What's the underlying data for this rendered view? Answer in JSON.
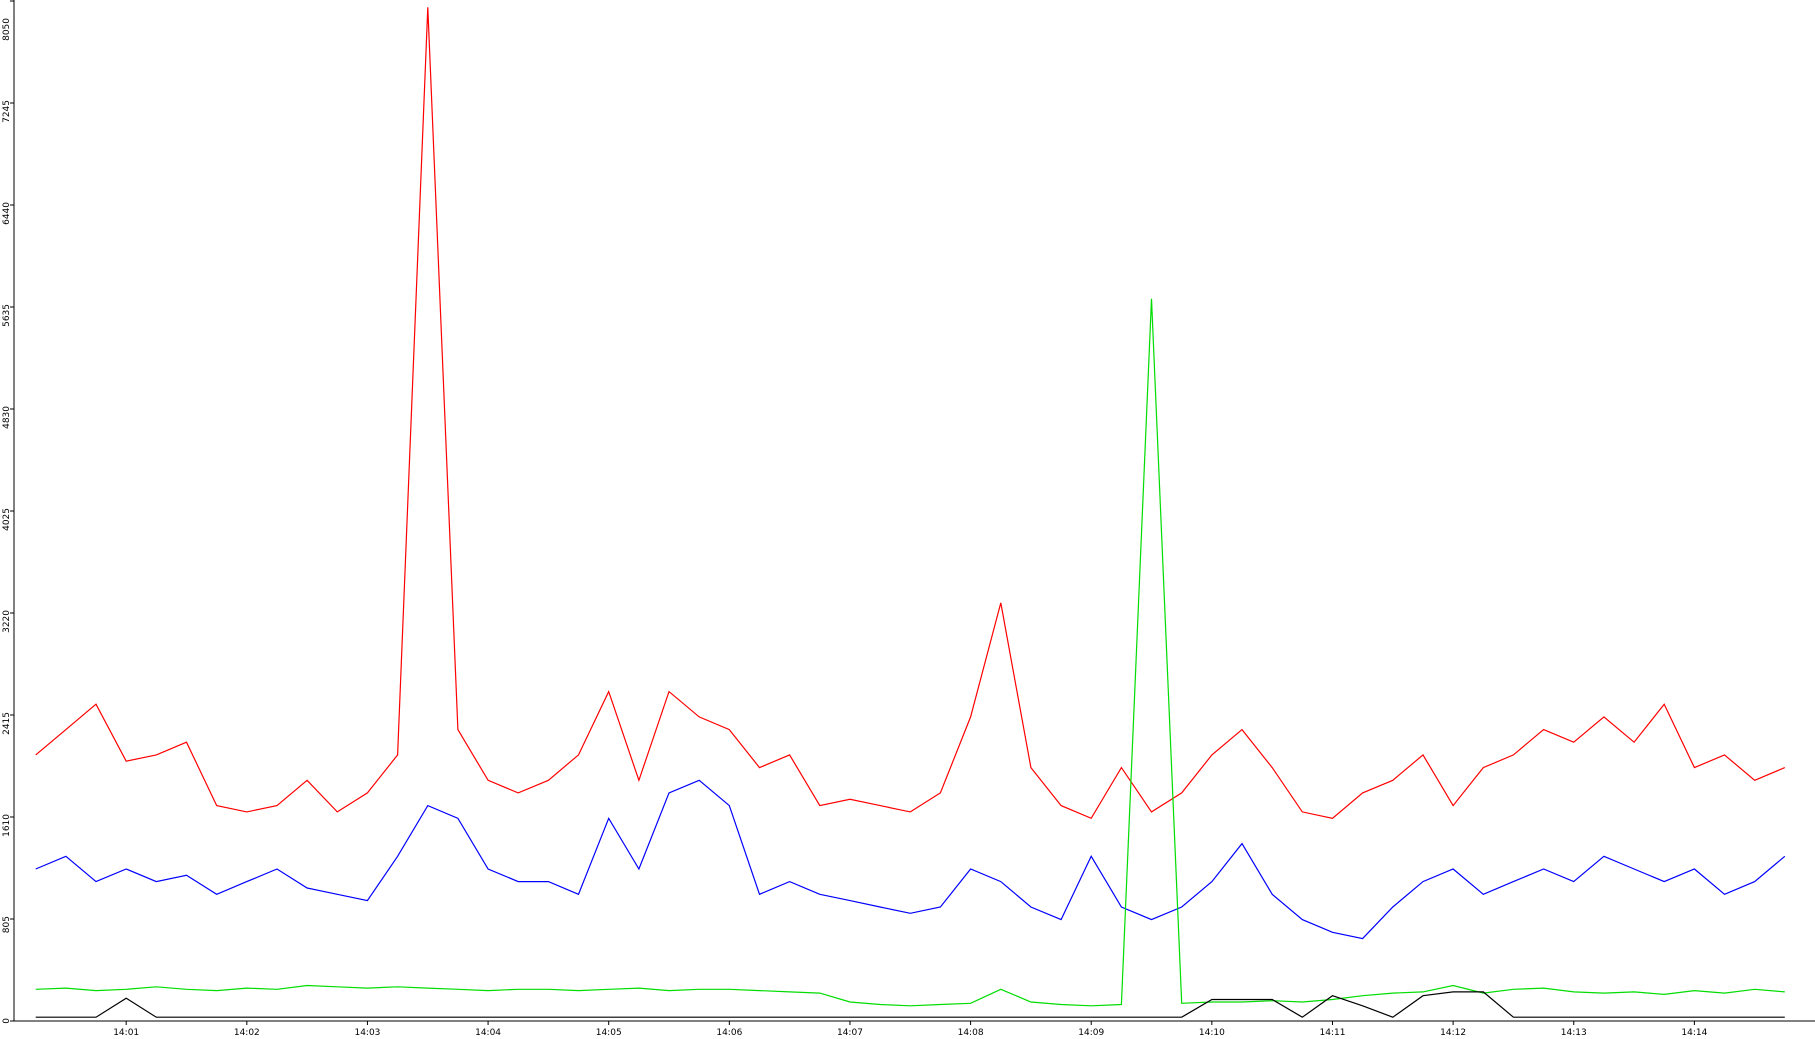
{
  "chart_data": {
    "type": "line",
    "x": [
      0.25,
      0.5,
      0.75,
      1,
      1.25,
      1.5,
      1.75,
      2,
      2.25,
      2.5,
      2.75,
      3,
      3.25,
      3.5,
      3.75,
      4,
      4.25,
      4.5,
      4.75,
      5,
      5.25,
      5.5,
      5.75,
      6,
      6.25,
      6.5,
      6.75,
      7,
      7.25,
      7.5,
      7.75,
      8,
      8.25,
      8.5,
      8.75,
      9,
      9.25,
      9.5,
      9.75,
      10,
      10.25,
      10.5,
      10.75,
      11,
      11.25,
      11.5,
      11.75,
      12,
      12.25,
      12.5,
      12.75,
      13,
      13.25,
      13.5,
      13.75,
      14,
      14.25,
      14.5,
      14.75
    ],
    "series": [
      {
        "color": "#ff0000",
        "values": [
          2100,
          2300,
          2500,
          2050,
          2100,
          2200,
          1700,
          1650,
          1700,
          1900,
          1650,
          1800,
          2100,
          8000,
          2300,
          1900,
          1800,
          1900,
          2100,
          2600,
          1900,
          2600,
          2400,
          2300,
          2000,
          2100,
          1700,
          1750,
          1700,
          1650,
          1800,
          2400,
          3300,
          2000,
          1700,
          1600,
          2000,
          1650,
          1800,
          2100,
          2300,
          2000,
          1650,
          1600,
          1800,
          1900,
          2100,
          1700,
          2000,
          2100,
          2300,
          2200,
          2400,
          2200,
          2500,
          2000,
          2100,
          1900,
          2000
        ]
      },
      {
        "color": "#0000ff",
        "values": [
          1200,
          1300,
          1100,
          1200,
          1100,
          1150,
          1000,
          1100,
          1200,
          1050,
          1000,
          950,
          1300,
          1700,
          1600,
          1200,
          1100,
          1100,
          1000,
          1600,
          1200,
          1800,
          1900,
          1700,
          1000,
          1100,
          1000,
          950,
          900,
          850,
          900,
          1200,
          1100,
          900,
          800,
          1300,
          900,
          800,
          900,
          1100,
          1400,
          1000,
          800,
          700,
          650,
          900,
          1100,
          1200,
          1000,
          1100,
          1200,
          1100,
          1300,
          1200,
          1100,
          1200,
          1000,
          1100,
          1300
        ]
      },
      {
        "color": "#00dd00",
        "values": [
          250,
          260,
          240,
          250,
          270,
          250,
          240,
          260,
          250,
          280,
          270,
          260,
          270,
          260,
          250,
          240,
          250,
          250,
          240,
          250,
          260,
          240,
          250,
          250,
          240,
          230,
          220,
          150,
          130,
          120,
          130,
          140,
          250,
          150,
          130,
          120,
          130,
          5700,
          140,
          150,
          150,
          160,
          150,
          170,
          200,
          220,
          230,
          280,
          220,
          250,
          260,
          230,
          220,
          230,
          210,
          240,
          220,
          250,
          230
        ]
      },
      {
        "color": "#000000",
        "values": [
          30,
          30,
          30,
          180,
          30,
          30,
          30,
          30,
          30,
          30,
          30,
          30,
          30,
          30,
          30,
          30,
          30,
          30,
          30,
          30,
          30,
          30,
          30,
          30,
          30,
          30,
          30,
          30,
          30,
          30,
          30,
          30,
          30,
          30,
          30,
          30,
          30,
          30,
          30,
          170,
          170,
          170,
          30,
          200,
          120,
          30,
          200,
          230,
          230,
          30,
          30,
          30,
          30,
          30,
          30,
          30,
          30,
          30,
          30
        ]
      }
    ],
    "xlim": [
      0.07,
      15
    ],
    "xticks": [
      {
        "value": 1,
        "label": "14:01"
      },
      {
        "value": 2,
        "label": "14:02"
      },
      {
        "value": 3,
        "label": "14:03"
      },
      {
        "value": 4,
        "label": "14:04"
      },
      {
        "value": 5,
        "label": "14:05"
      },
      {
        "value": 6,
        "label": "14:06"
      },
      {
        "value": 7,
        "label": "14:07"
      },
      {
        "value": 8,
        "label": "14:08"
      },
      {
        "value": 9,
        "label": "14:09"
      },
      {
        "value": 10,
        "label": "14:10"
      },
      {
        "value": 11,
        "label": "14:11"
      },
      {
        "value": 12,
        "label": "14:12"
      },
      {
        "value": 13,
        "label": "14:13"
      },
      {
        "value": 14,
        "label": "14:14"
      }
    ],
    "ylim": [
      0,
      8050
    ],
    "yticks": [
      0,
      805,
      1610,
      2415,
      3220,
      4025,
      4830,
      5635,
      6440,
      7245,
      8050
    ]
  }
}
